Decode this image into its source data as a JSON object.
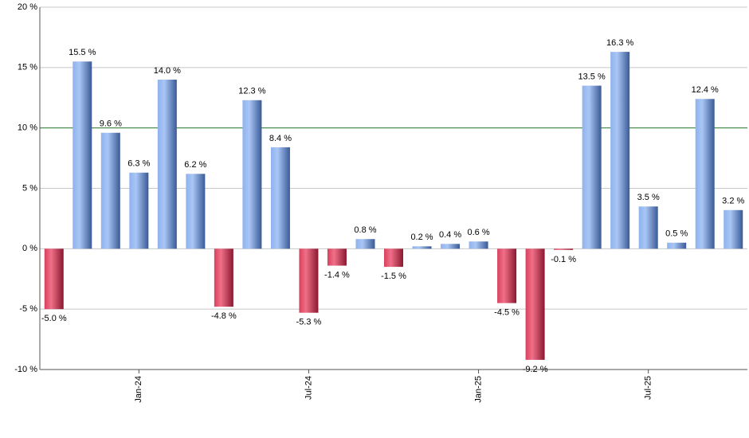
{
  "chart_data": {
    "type": "bar",
    "categories": [
      null,
      null,
      null,
      "Jan-24",
      null,
      null,
      null,
      null,
      null,
      "Jul-24",
      null,
      null,
      null,
      null,
      null,
      "Jan-25",
      null,
      null,
      null,
      null,
      null,
      "Jul-25",
      null,
      null,
      null
    ],
    "values": [
      -5.0,
      15.5,
      9.6,
      6.3,
      14.0,
      6.2,
      -4.8,
      12.3,
      8.4,
      -5.3,
      -1.4,
      0.8,
      -1.5,
      0.2,
      0.4,
      0.6,
      -4.5,
      -9.2,
      -0.1,
      13.5,
      16.3,
      3.5,
      0.5,
      12.4,
      3.2
    ],
    "value_labels": [
      "-5.0 %",
      "15.5 %",
      "9.6 %",
      "6.3 %",
      "14.0 %",
      "6.2 %",
      "-4.8 %",
      "12.3 %",
      "8.4 %",
      "-5.3 %",
      "-1.4 %",
      "0.8 %",
      "-1.5 %",
      "0.2 %",
      "0.4 %",
      "0.6 %",
      "-4.5 %",
      "-9.2 %",
      "-0.1 %",
      "13.5 %",
      "16.3 %",
      "3.5 %",
      "0.5 %",
      "12.4 %",
      "3.2 %"
    ],
    "positive_color": "#7a9fe0",
    "negative_color": "#c8304e",
    "ylim": [
      -10,
      20
    ],
    "yticks": [
      {
        "value": -10,
        "label": "-10 %"
      },
      {
        "value": -5,
        "label": "-5 %"
      },
      {
        "value": 0,
        "label": "0 %"
      },
      {
        "value": 5,
        "label": "5 %"
      },
      {
        "value": 10,
        "label": "10 %"
      },
      {
        "value": 15,
        "label": "15 %"
      },
      {
        "value": 20,
        "label": "20 %"
      }
    ],
    "grid": true,
    "reference_line": {
      "value": 10,
      "color": "#2e7d32"
    }
  }
}
